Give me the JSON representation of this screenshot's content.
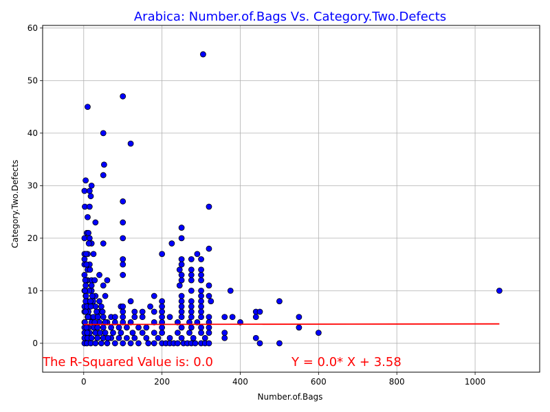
{
  "chart_data": {
    "type": "scatter",
    "title": "Arabica: Number.of.Bags Vs. Category.Two.Defects",
    "xlabel": "Number.of.Bags",
    "ylabel": "Category.Two.Defects",
    "xlim": [
      -105,
      1165
    ],
    "ylim": [
      -5.5,
      60.5
    ],
    "xticks": [
      0,
      200,
      400,
      600,
      800,
      1000
    ],
    "yticks": [
      0,
      10,
      20,
      30,
      40,
      50,
      60
    ],
    "grid": true,
    "points": [
      [
        305,
        55
      ],
      [
        100,
        47
      ],
      [
        10,
        45
      ],
      [
        50,
        40
      ],
      [
        120,
        38
      ],
      [
        52,
        34
      ],
      [
        50,
        32
      ],
      [
        5,
        31
      ],
      [
        20,
        30
      ],
      [
        2,
        29
      ],
      [
        15,
        29
      ],
      [
        18,
        28
      ],
      [
        3,
        26
      ],
      [
        15,
        26
      ],
      [
        320,
        26
      ],
      [
        100,
        27
      ],
      [
        10,
        24
      ],
      [
        30,
        23
      ],
      [
        100,
        23
      ],
      [
        8,
        21
      ],
      [
        12,
        21
      ],
      [
        2,
        20
      ],
      [
        15,
        20
      ],
      [
        100,
        20
      ],
      [
        250,
        20
      ],
      [
        20,
        19
      ],
      [
        50,
        19
      ],
      [
        225,
        19
      ],
      [
        250,
        22
      ],
      [
        320,
        18
      ],
      [
        2,
        17
      ],
      [
        10,
        17
      ],
      [
        25,
        17
      ],
      [
        200,
        17
      ],
      [
        290,
        17
      ],
      [
        2,
        16
      ],
      [
        100,
        16
      ],
      [
        250,
        16
      ],
      [
        275,
        16
      ],
      [
        300,
        16
      ],
      [
        2,
        15
      ],
      [
        15,
        15
      ],
      [
        100,
        15
      ],
      [
        250,
        15
      ],
      [
        10,
        14
      ],
      [
        245,
        14
      ],
      [
        275,
        14
      ],
      [
        300,
        14
      ],
      [
        2,
        13
      ],
      [
        40,
        13
      ],
      [
        100,
        13
      ],
      [
        250,
        13
      ],
      [
        275,
        13
      ],
      [
        300,
        13
      ],
      [
        10,
        12
      ],
      [
        20,
        12
      ],
      [
        60,
        12
      ],
      [
        250,
        12
      ],
      [
        275,
        12
      ],
      [
        300,
        12
      ],
      [
        5,
        11
      ],
      [
        20,
        11
      ],
      [
        50,
        11
      ],
      [
        245,
        11
      ],
      [
        320,
        11
      ],
      [
        2,
        10
      ],
      [
        20,
        10
      ],
      [
        275,
        10
      ],
      [
        300,
        10
      ],
      [
        375,
        10
      ],
      [
        1062,
        10
      ],
      [
        5,
        9
      ],
      [
        30,
        9
      ],
      [
        55,
        9
      ],
      [
        180,
        9
      ],
      [
        250,
        9
      ],
      [
        300,
        9
      ],
      [
        320,
        9
      ],
      [
        10,
        8
      ],
      [
        40,
        8
      ],
      [
        120,
        8
      ],
      [
        200,
        8
      ],
      [
        250,
        8
      ],
      [
        275,
        8
      ],
      [
        300,
        8
      ],
      [
        325,
        8
      ],
      [
        500,
        8
      ],
      [
        2,
        7
      ],
      [
        30,
        7
      ],
      [
        45,
        7
      ],
      [
        95,
        7
      ],
      [
        100,
        7
      ],
      [
        170,
        7
      ],
      [
        200,
        7
      ],
      [
        250,
        7
      ],
      [
        275,
        7
      ],
      [
        300,
        7
      ],
      [
        2,
        6
      ],
      [
        40,
        6
      ],
      [
        100,
        6
      ],
      [
        130,
        6
      ],
      [
        150,
        6
      ],
      [
        180,
        6
      ],
      [
        200,
        6
      ],
      [
        250,
        6
      ],
      [
        275,
        6
      ],
      [
        300,
        6
      ],
      [
        440,
        6
      ],
      [
        450,
        6
      ],
      [
        10,
        5
      ],
      [
        50,
        5
      ],
      [
        70,
        5
      ],
      [
        80,
        5
      ],
      [
        100,
        5
      ],
      [
        130,
        5
      ],
      [
        150,
        5
      ],
      [
        200,
        5
      ],
      [
        220,
        5
      ],
      [
        250,
        5
      ],
      [
        275,
        5
      ],
      [
        300,
        5
      ],
      [
        320,
        5
      ],
      [
        360,
        5
      ],
      [
        380,
        5
      ],
      [
        440,
        5
      ],
      [
        550,
        5
      ],
      [
        2,
        4
      ],
      [
        20,
        4
      ],
      [
        40,
        4
      ],
      [
        60,
        4
      ],
      [
        80,
        4
      ],
      [
        100,
        4
      ],
      [
        120,
        4
      ],
      [
        180,
        4
      ],
      [
        200,
        4
      ],
      [
        240,
        4
      ],
      [
        270,
        4
      ],
      [
        290,
        4
      ],
      [
        320,
        4
      ],
      [
        400,
        4
      ],
      [
        2,
        3
      ],
      [
        10,
        3
      ],
      [
        25,
        3
      ],
      [
        50,
        3
      ],
      [
        70,
        3
      ],
      [
        90,
        3
      ],
      [
        110,
        3
      ],
      [
        140,
        3
      ],
      [
        160,
        3
      ],
      [
        200,
        3
      ],
      [
        250,
        3
      ],
      [
        275,
        3
      ],
      [
        300,
        3
      ],
      [
        320,
        3
      ],
      [
        550,
        3
      ],
      [
        2,
        2
      ],
      [
        15,
        2
      ],
      [
        30,
        2
      ],
      [
        55,
        2
      ],
      [
        75,
        2
      ],
      [
        95,
        2
      ],
      [
        125,
        2
      ],
      [
        150,
        2
      ],
      [
        180,
        2
      ],
      [
        200,
        2
      ],
      [
        240,
        2
      ],
      [
        270,
        2
      ],
      [
        300,
        2
      ],
      [
        320,
        2
      ],
      [
        360,
        2
      ],
      [
        600,
        2
      ],
      [
        2,
        1
      ],
      [
        10,
        1
      ],
      [
        20,
        1
      ],
      [
        35,
        1
      ],
      [
        50,
        1
      ],
      [
        70,
        1
      ],
      [
        90,
        1
      ],
      [
        110,
        1
      ],
      [
        130,
        1
      ],
      [
        160,
        1
      ],
      [
        190,
        1
      ],
      [
        220,
        1
      ],
      [
        250,
        1
      ],
      [
        280,
        1
      ],
      [
        310,
        1
      ],
      [
        360,
        1
      ],
      [
        440,
        1
      ],
      [
        2,
        0
      ],
      [
        8,
        0
      ],
      [
        18,
        0
      ],
      [
        30,
        0
      ],
      [
        45,
        0
      ],
      [
        60,
        0
      ],
      [
        80,
        0
      ],
      [
        100,
        0
      ],
      [
        120,
        0
      ],
      [
        140,
        0
      ],
      [
        165,
        0
      ],
      [
        180,
        0
      ],
      [
        200,
        0
      ],
      [
        210,
        0
      ],
      [
        220,
        0
      ],
      [
        230,
        0
      ],
      [
        240,
        0
      ],
      [
        255,
        0
      ],
      [
        265,
        0
      ],
      [
        275,
        0
      ],
      [
        285,
        0
      ],
      [
        300,
        0
      ],
      [
        310,
        0
      ],
      [
        320,
        0
      ],
      [
        450,
        0
      ],
      [
        500,
        0
      ],
      [
        5,
        8
      ],
      [
        8,
        7
      ],
      [
        12,
        6
      ],
      [
        15,
        5
      ],
      [
        22,
        9
      ],
      [
        28,
        4
      ],
      [
        35,
        3
      ],
      [
        42,
        2
      ],
      [
        48,
        6
      ],
      [
        55,
        4
      ],
      [
        62,
        1
      ],
      [
        25,
        5
      ],
      [
        33,
        6
      ],
      [
        12,
        3
      ],
      [
        18,
        7
      ],
      [
        6,
        9
      ],
      [
        8,
        12
      ],
      [
        14,
        10
      ],
      [
        24,
        8
      ],
      [
        36,
        5
      ],
      [
        28,
        12
      ],
      [
        16,
        14
      ],
      [
        5,
        6
      ],
      [
        7,
        3
      ],
      [
        3,
        4
      ],
      [
        9,
        2
      ],
      [
        11,
        5
      ],
      [
        4,
        12
      ],
      [
        6,
        17
      ],
      [
        3,
        10
      ],
      [
        7,
        15
      ],
      [
        13,
        19
      ],
      [
        17,
        8
      ]
    ],
    "regression": {
      "x": [
        0,
        1062
      ],
      "y": [
        3.58,
        3.69
      ],
      "r_squared_label": "The R-Squared Value is: 0.0",
      "equation_label": "Y = 0.0* X + 3.58"
    },
    "colors": {
      "title": "#0000ff",
      "point_fill": "#0000ff",
      "point_edge": "#000000",
      "regression": "#ff0000",
      "annotation": "#ff0000",
      "grid": "#b0b0b0"
    }
  }
}
